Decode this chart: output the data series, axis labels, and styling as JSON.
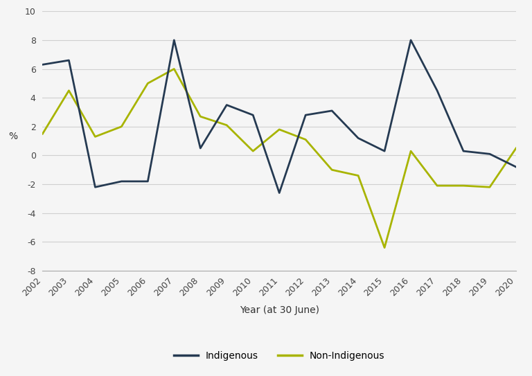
{
  "years": [
    2002,
    2003,
    2004,
    2005,
    2006,
    2007,
    2008,
    2009,
    2010,
    2011,
    2012,
    2013,
    2014,
    2015,
    2016,
    2017,
    2018,
    2019,
    2020
  ],
  "indigenous": [
    6.3,
    6.6,
    -2.2,
    -1.8,
    -1.8,
    8.0,
    0.5,
    3.5,
    2.8,
    -2.6,
    2.8,
    3.1,
    1.2,
    0.3,
    8.0,
    4.5,
    0.3,
    0.1,
    -0.8
  ],
  "non_indigenous": [
    1.5,
    4.5,
    1.3,
    2.0,
    5.0,
    6.0,
    2.7,
    2.1,
    0.3,
    1.8,
    1.1,
    -1.0,
    -1.4,
    -6.4,
    0.3,
    -2.1,
    -2.1,
    -2.2,
    0.5
  ],
  "indigenous_color": "#253a52",
  "non_indigenous_color": "#a8b400",
  "xlabel": "Year (at 30 June)",
  "ylabel": "%",
  "ylim": [
    -8,
    10
  ],
  "yticks": [
    -8,
    -6,
    -4,
    -2,
    0,
    2,
    4,
    6,
    8,
    10
  ],
  "legend_indigenous": "Indigenous",
  "legend_non_indigenous": "Non-Indigenous",
  "background_color": "#f5f5f5",
  "grid_color": "#d0d0d0",
  "line_width": 2.0
}
